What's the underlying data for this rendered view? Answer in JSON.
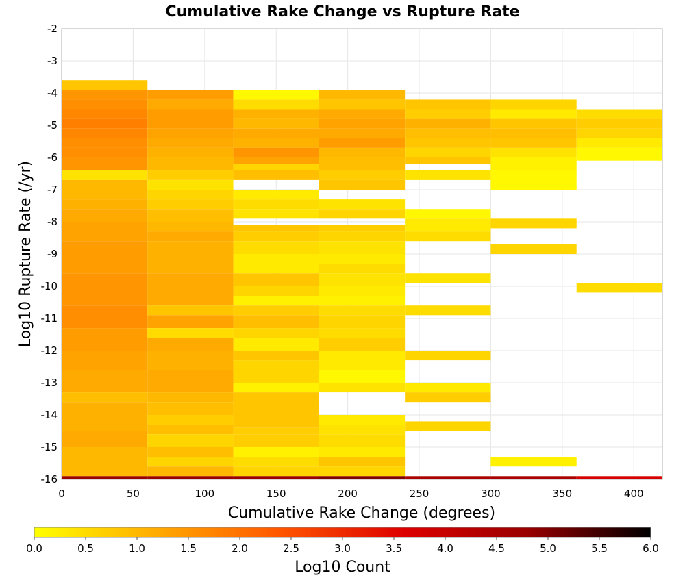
{
  "chart_data": {
    "type": "heatmap",
    "title": "Cumulative Rake Change vs Rupture Rate",
    "xlabel": "Cumulative Rake Change (degrees)",
    "ylabel": "Log10 Rupture Rate (/yr)",
    "colorbar_label": "Log10 Count",
    "xlim": [
      0,
      420
    ],
    "ylim": [
      -16,
      -2
    ],
    "x_ticks": [
      "0",
      "50",
      "100",
      "150",
      "200",
      "250",
      "300",
      "350",
      "400"
    ],
    "y_ticks": [
      "-2",
      "-3",
      "-4",
      "-5",
      "-6",
      "-7",
      "-8",
      "-9",
      "-10",
      "-11",
      "-12",
      "-13",
      "-14",
      "-15",
      "-16"
    ],
    "colorbar_ticks": [
      "0.0",
      "0.5",
      "1.0",
      "1.5",
      "2.0",
      "2.5",
      "3.0",
      "3.5",
      "4.0",
      "4.5",
      "5.0",
      "5.5",
      "6.0"
    ],
    "color_range": [
      0,
      6
    ],
    "colormap": [
      "#ffff00",
      "#ffaa00",
      "#ff5500",
      "#dd0000",
      "#990000",
      "#000000"
    ],
    "grid": true,
    "x_bin_width": 60,
    "y_bin_height": 0.3,
    "columns": [
      {
        "x_start": 0,
        "cells": [
          [
            -3.9,
            -3.6,
            0.8
          ],
          [
            -4.2,
            -3.9,
            1.5
          ],
          [
            -4.5,
            -4.2,
            1.6
          ],
          [
            -4.8,
            -4.5,
            1.7
          ],
          [
            -5.1,
            -4.8,
            1.8
          ],
          [
            -5.4,
            -5.1,
            1.7
          ],
          [
            -5.7,
            -5.4,
            1.6
          ],
          [
            -6.0,
            -5.7,
            1.6
          ],
          [
            -6.4,
            -6.0,
            1.5
          ],
          [
            -6.7,
            -6.4,
            0.4
          ],
          [
            -7.3,
            -6.7,
            1.0
          ],
          [
            -7.6,
            -7.3,
            1.1
          ],
          [
            -8.0,
            -7.6,
            1.2
          ],
          [
            -8.6,
            -8.0,
            1.3
          ],
          [
            -9.6,
            -8.6,
            1.4
          ],
          [
            -10.6,
            -9.6,
            1.5
          ],
          [
            -11.3,
            -10.6,
            1.6
          ],
          [
            -12.0,
            -11.3,
            1.4
          ],
          [
            -12.6,
            -12.0,
            1.3
          ],
          [
            -13.3,
            -12.6,
            1.2
          ],
          [
            -13.6,
            -13.3,
            0.9
          ],
          [
            -14.5,
            -13.6,
            1.1
          ],
          [
            -15.0,
            -14.5,
            1.2
          ],
          [
            -15.9,
            -15.0,
            1.0
          ],
          [
            -16.0,
            -15.9,
            4.8
          ]
        ]
      },
      {
        "x_start": 60,
        "cells": [
          [
            -4.2,
            -3.9,
            1.4
          ],
          [
            -4.5,
            -4.2,
            1.2
          ],
          [
            -5.1,
            -4.5,
            1.4
          ],
          [
            -5.4,
            -5.1,
            1.3
          ],
          [
            -5.7,
            -5.4,
            1.2
          ],
          [
            -6.0,
            -5.7,
            1.1
          ],
          [
            -6.4,
            -6.0,
            1.0
          ],
          [
            -6.7,
            -6.4,
            0.7
          ],
          [
            -7.0,
            -6.7,
            0.4
          ],
          [
            -7.3,
            -7.0,
            0.6
          ],
          [
            -7.6,
            -7.3,
            0.7
          ],
          [
            -8.0,
            -7.6,
            0.9
          ],
          [
            -8.3,
            -8.0,
            1.0
          ],
          [
            -8.6,
            -8.3,
            1.2
          ],
          [
            -9.6,
            -8.6,
            1.1
          ],
          [
            -10.6,
            -9.6,
            1.2
          ],
          [
            -10.9,
            -10.6,
            0.8
          ],
          [
            -11.3,
            -10.9,
            1.3
          ],
          [
            -11.6,
            -11.3,
            0.5
          ],
          [
            -12.0,
            -11.6,
            1.2
          ],
          [
            -12.6,
            -12.0,
            1.1
          ],
          [
            -13.3,
            -12.6,
            1.2
          ],
          [
            -13.6,
            -13.3,
            1.0
          ],
          [
            -14.0,
            -13.6,
            0.9
          ],
          [
            -14.3,
            -14.0,
            0.7
          ],
          [
            -14.6,
            -14.3,
            0.9
          ],
          [
            -15.0,
            -14.6,
            0.6
          ],
          [
            -15.3,
            -15.0,
            0.9
          ],
          [
            -15.6,
            -15.3,
            0.6
          ],
          [
            -15.9,
            -15.6,
            1.0
          ],
          [
            -16.0,
            -15.9,
            4.8
          ]
        ]
      },
      {
        "x_start": 120,
        "cells": [
          [
            -4.2,
            -3.9,
            0.1
          ],
          [
            -4.5,
            -4.2,
            0.5
          ],
          [
            -4.8,
            -4.5,
            1.1
          ],
          [
            -5.1,
            -4.8,
            1.0
          ],
          [
            -5.4,
            -5.1,
            1.2
          ],
          [
            -5.7,
            -5.4,
            1.1
          ],
          [
            -6.0,
            -5.7,
            1.5
          ],
          [
            -6.2,
            -6.0,
            1.3
          ],
          [
            -6.4,
            -6.2,
            0.6
          ],
          [
            -6.7,
            -6.4,
            0.9
          ],
          [
            -7.3,
            -7.0,
            0.3
          ],
          [
            -7.6,
            -7.3,
            0.5
          ],
          [
            -7.9,
            -7.6,
            0.4
          ],
          [
            -8.3,
            -8.1,
            0.8
          ],
          [
            -8.6,
            -8.3,
            0.7
          ],
          [
            -9.0,
            -8.6,
            0.5
          ],
          [
            -9.6,
            -9.0,
            0.3
          ],
          [
            -10.0,
            -9.6,
            0.8
          ],
          [
            -10.3,
            -10.0,
            0.6
          ],
          [
            -10.6,
            -10.3,
            0.2
          ],
          [
            -10.9,
            -10.6,
            0.7
          ],
          [
            -11.3,
            -10.9,
            0.9
          ],
          [
            -11.6,
            -11.3,
            0.6
          ],
          [
            -12.0,
            -11.6,
            0.3
          ],
          [
            -12.3,
            -12.0,
            0.8
          ],
          [
            -13.0,
            -12.3,
            0.6
          ],
          [
            -13.3,
            -13.0,
            0.2
          ],
          [
            -14.4,
            -13.3,
            0.8
          ],
          [
            -14.6,
            -14.4,
            0.7
          ],
          [
            -15.0,
            -14.6,
            0.7
          ],
          [
            -15.3,
            -15.0,
            0.2
          ],
          [
            -15.6,
            -15.3,
            0.5
          ],
          [
            -15.9,
            -15.6,
            0.6
          ],
          [
            -16.0,
            -15.9,
            4.8
          ]
        ]
      },
      {
        "x_start": 180,
        "cells": [
          [
            -4.2,
            -3.9,
            1.0
          ],
          [
            -4.5,
            -4.2,
            0.8
          ],
          [
            -4.8,
            -4.5,
            1.2
          ],
          [
            -5.1,
            -4.8,
            1.3
          ],
          [
            -5.4,
            -5.1,
            1.2
          ],
          [
            -5.7,
            -5.4,
            1.4
          ],
          [
            -6.0,
            -5.7,
            1.0
          ],
          [
            -6.4,
            -6.0,
            0.9
          ],
          [
            -6.7,
            -6.4,
            0.7
          ],
          [
            -7.0,
            -6.7,
            0.8
          ],
          [
            -7.6,
            -7.3,
            0.4
          ],
          [
            -7.9,
            -7.6,
            0.6
          ],
          [
            -8.3,
            -8.1,
            0.7
          ],
          [
            -8.6,
            -8.3,
            0.6
          ],
          [
            -9.0,
            -8.6,
            0.4
          ],
          [
            -9.3,
            -9.0,
            0.3
          ],
          [
            -9.6,
            -9.3,
            0.5
          ],
          [
            -10.0,
            -9.6,
            0.4
          ],
          [
            -10.3,
            -10.0,
            0.3
          ],
          [
            -10.6,
            -10.3,
            0.2
          ],
          [
            -10.9,
            -10.6,
            0.5
          ],
          [
            -11.3,
            -10.9,
            0.6
          ],
          [
            -11.6,
            -11.3,
            0.5
          ],
          [
            -12.0,
            -11.6,
            0.7
          ],
          [
            -12.6,
            -12.0,
            0.3
          ],
          [
            -13.0,
            -12.6,
            0.1
          ],
          [
            -13.3,
            -13.0,
            0.4
          ],
          [
            -14.3,
            -14.0,
            0.3
          ],
          [
            -14.6,
            -14.3,
            0.4
          ],
          [
            -15.0,
            -14.6,
            0.5
          ],
          [
            -15.3,
            -15.0,
            0.3
          ],
          [
            -15.6,
            -15.3,
            0.8
          ],
          [
            -15.9,
            -15.6,
            0.6
          ],
          [
            -16.0,
            -15.9,
            5.0
          ]
        ]
      },
      {
        "x_start": 240,
        "cells": [
          [
            -4.5,
            -4.2,
            0.8
          ],
          [
            -4.8,
            -4.5,
            0.7
          ],
          [
            -5.1,
            -4.8,
            1.1
          ],
          [
            -5.4,
            -5.1,
            0.9
          ],
          [
            -5.7,
            -5.4,
            0.8
          ],
          [
            -6.0,
            -5.7,
            0.6
          ],
          [
            -6.2,
            -6.0,
            0.8
          ],
          [
            -6.7,
            -6.4,
            0.4
          ],
          [
            -7.9,
            -7.6,
            0.1
          ],
          [
            -8.3,
            -7.9,
            0.3
          ],
          [
            -8.6,
            -8.3,
            0.5
          ],
          [
            -9.9,
            -9.6,
            0.4
          ],
          [
            -10.9,
            -10.6,
            0.5
          ],
          [
            -12.3,
            -12.0,
            0.6
          ],
          [
            -13.3,
            -13.0,
            0.3
          ],
          [
            -13.6,
            -13.3,
            0.7
          ],
          [
            -14.5,
            -14.2,
            0.6
          ],
          [
            -16.0,
            -15.9,
            4.5
          ]
        ]
      },
      {
        "x_start": 300,
        "cells": [
          [
            -4.5,
            -4.2,
            0.6
          ],
          [
            -4.8,
            -4.5,
            0.3
          ],
          [
            -5.1,
            -4.8,
            0.8
          ],
          [
            -5.4,
            -5.1,
            0.9
          ],
          [
            -5.7,
            -5.4,
            0.8
          ],
          [
            -6.0,
            -5.7,
            0.4
          ],
          [
            -6.4,
            -6.0,
            0.2
          ],
          [
            -7.0,
            -6.4,
            0.1
          ],
          [
            -8.2,
            -7.9,
            0.6
          ],
          [
            -9.0,
            -8.7,
            0.6
          ],
          [
            -15.6,
            -15.3,
            0.2
          ],
          [
            -16.0,
            -15.9,
            4.5
          ]
        ]
      },
      {
        "x_start": 360,
        "cells": [
          [
            -4.8,
            -4.5,
            0.5
          ],
          [
            -5.1,
            -4.8,
            0.7
          ],
          [
            -5.4,
            -5.1,
            0.6
          ],
          [
            -5.7,
            -5.4,
            0.3
          ],
          [
            -6.1,
            -5.7,
            0.1
          ],
          [
            -10.2,
            -9.9,
            0.5
          ],
          [
            -16.0,
            -15.9,
            3.7
          ]
        ]
      }
    ]
  }
}
